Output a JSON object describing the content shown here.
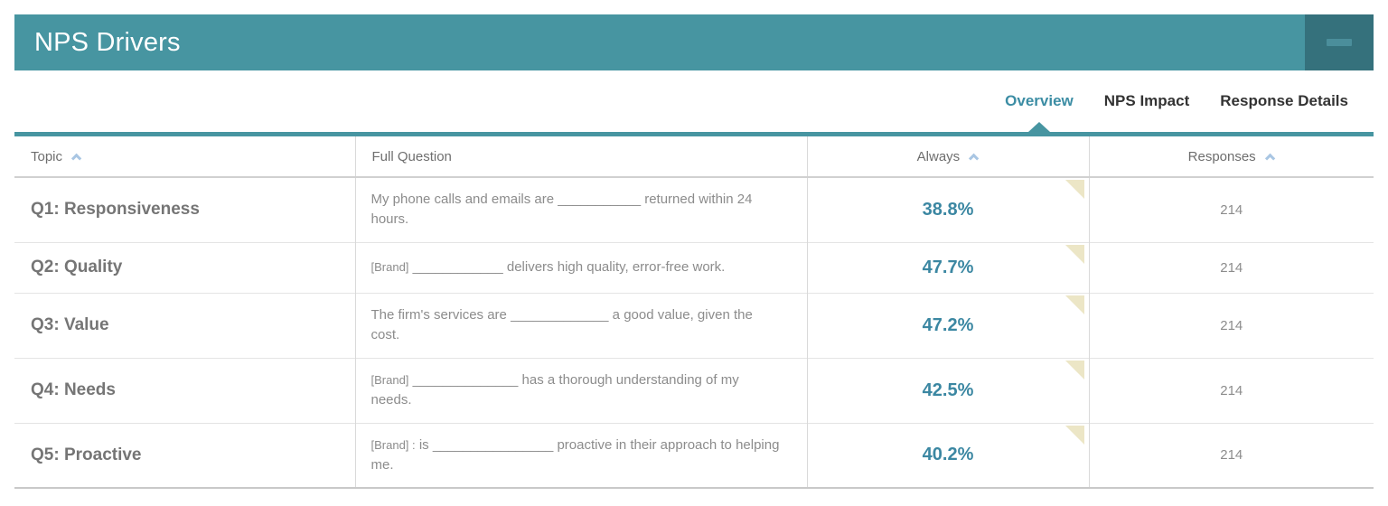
{
  "panel": {
    "title": "NPS Drivers"
  },
  "tabs": {
    "overview": "Overview",
    "nps_impact": "NPS Impact",
    "response_details": "Response Details",
    "active_tab": "Overview"
  },
  "table": {
    "headers": {
      "topic": "Topic",
      "full_question": "Full Question",
      "always": "Always",
      "responses": "Responses"
    },
    "sorted_columns": [
      "Topic",
      "Always",
      "Responses"
    ],
    "rows": [
      {
        "topic": "Q1: Responsiveness",
        "brand": "",
        "question": "My phone calls and emails are ___________ returned within 24 hours.",
        "always": "38.8%",
        "responses": "214"
      },
      {
        "topic": "Q2: Quality",
        "brand": "[Brand]",
        "question": "____________ delivers high quality, error-free work.",
        "always": "47.7%",
        "responses": "214"
      },
      {
        "topic": "Q3: Value",
        "brand": "",
        "question": "The firm's services are _____________ a good value, given the cost.",
        "always": "47.2%",
        "responses": "214"
      },
      {
        "topic": "Q4: Needs",
        "brand": "[Brand]",
        "question": "______________ has a thorough understanding of my needs.",
        "always": "42.5%",
        "responses": "214"
      },
      {
        "topic": "Q5: Proactive",
        "brand": "[Brand] :",
        "question": "is ________________ proactive in their approach to helping me.",
        "always": "40.2%",
        "responses": "214"
      }
    ]
  },
  "colors": {
    "header_teal": "#4795A1",
    "minimize_button_teal": "#35717C",
    "accent_value_teal": "#3B87A2",
    "active_tab_teal": "#3C8DA4",
    "corner_flag_beige": "#ECE6C6",
    "sort_chevron_blue": "#A9C6E3"
  }
}
